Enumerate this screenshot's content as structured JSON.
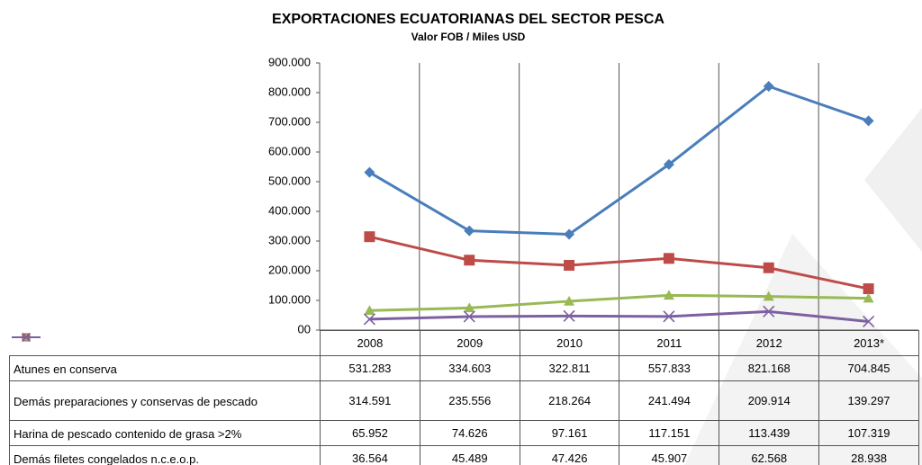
{
  "chart_data": {
    "type": "line",
    "title": "EXPORTACIONES ECUATORIANAS DEL SECTOR PESCA",
    "subtitle": "Valor FOB / Miles USD",
    "categories": [
      "2008",
      "2009",
      "2010",
      "2011",
      "2012",
      "2013*"
    ],
    "ylim": [
      0,
      900000
    ],
    "yticks": [
      {
        "value": 0,
        "label": "00"
      },
      {
        "value": 100000,
        "label": "100.000"
      },
      {
        "value": 200000,
        "label": "200.000"
      },
      {
        "value": 300000,
        "label": "300.000"
      },
      {
        "value": 400000,
        "label": "400.000"
      },
      {
        "value": 500000,
        "label": "500.000"
      },
      {
        "value": 600000,
        "label": "600.000"
      },
      {
        "value": 700000,
        "label": "700.000"
      },
      {
        "value": 800000,
        "label": "800.000"
      },
      {
        "value": 900000,
        "label": "900.000"
      }
    ],
    "grid": false,
    "series": [
      {
        "name": "Atunes en conserva",
        "color": "#4a7ebb",
        "marker": "diamond",
        "values": [
          531283,
          334603,
          322811,
          557833,
          821168,
          704845
        ],
        "value_labels": [
          "531.283",
          "334.603",
          "322.811",
          "557.833",
          "821.168",
          "704.845"
        ]
      },
      {
        "name": "Demás preparaciones y conservas de pescado",
        "color": "#be4b48",
        "marker": "square",
        "values": [
          314591,
          235556,
          218264,
          241494,
          209914,
          139297
        ],
        "value_labels": [
          "314.591",
          "235.556",
          "218.264",
          "241.494",
          "209.914",
          "139.297"
        ]
      },
      {
        "name": "Harina de pescado contenido de grasa >2%",
        "color": "#98b954",
        "marker": "triangle",
        "values": [
          65952,
          74626,
          97161,
          117151,
          113439,
          107319
        ],
        "value_labels": [
          "65.952",
          "74.626",
          "97.161",
          "117.151",
          "113.439",
          "107.319"
        ]
      },
      {
        "name": "Demás filetes congelados n.c.e.o.p.",
        "color": "#7d60a0",
        "marker": "x",
        "values": [
          36564,
          45489,
          47426,
          45907,
          62568,
          28938
        ],
        "value_labels": [
          "36.564",
          "45.489",
          "47.426",
          "45.907",
          "62.568",
          "28.938"
        ]
      }
    ]
  }
}
